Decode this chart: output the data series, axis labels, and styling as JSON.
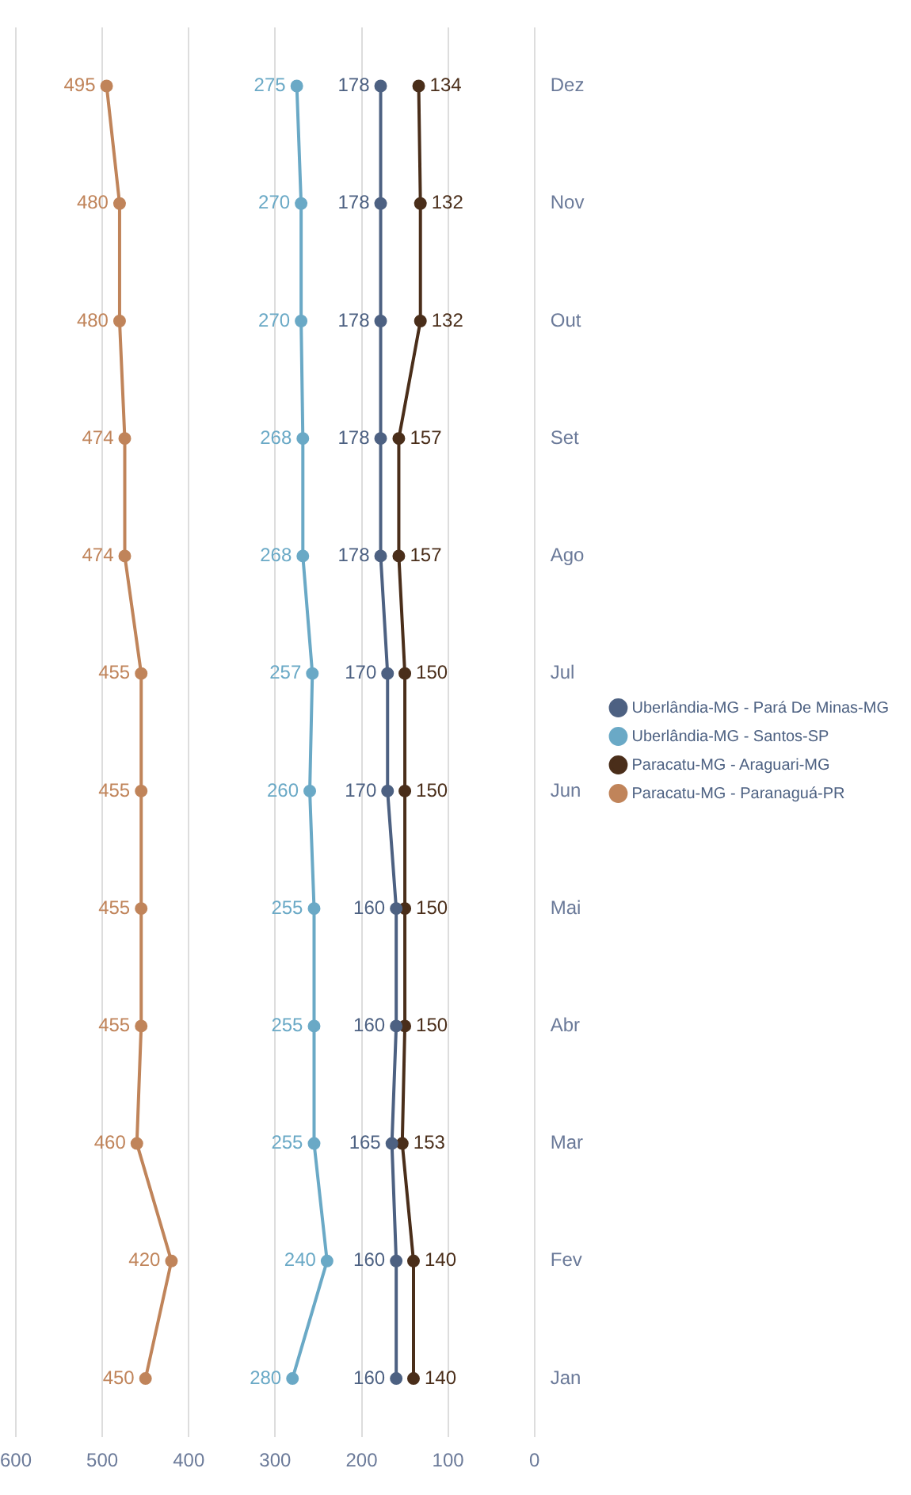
{
  "chart_data": {
    "type": "line",
    "orientation": "horizontal",
    "categories": [
      "Dez",
      "Nov",
      "Out",
      "Set",
      "Ago",
      "Jul",
      "Jun",
      "Mai",
      "Abr",
      "Mar",
      "Fev",
      "Jan"
    ],
    "series": [
      {
        "name": "Uberlândia-MG - Pará De Minas-MG",
        "color": "#4d6182",
        "values": [
          178,
          178,
          178,
          178,
          178,
          170,
          170,
          160,
          160,
          165,
          160,
          160
        ]
      },
      {
        "name": "Uberlândia-MG - Santos-SP",
        "color": "#6aa9c6",
        "values": [
          275,
          270,
          270,
          268,
          268,
          257,
          260,
          255,
          255,
          255,
          240,
          280
        ]
      },
      {
        "name": "Paracatu-MG - Araguari-MG",
        "color": "#4a2e1a",
        "values": [
          134,
          132,
          132,
          157,
          157,
          150,
          150,
          150,
          150,
          153,
          140,
          140
        ]
      },
      {
        "name": "Paracatu-MG - Paranaguá-PR",
        "color": "#c0845a",
        "values": [
          495,
          480,
          480,
          474,
          474,
          455,
          455,
          455,
          455,
          460,
          420,
          450
        ]
      }
    ],
    "xlim": [
      600,
      0
    ],
    "xticks": [
      0,
      100,
      200,
      300,
      400,
      500,
      600
    ],
    "grid": "x",
    "legend": "right",
    "marker": "circle",
    "data_labels": true
  }
}
